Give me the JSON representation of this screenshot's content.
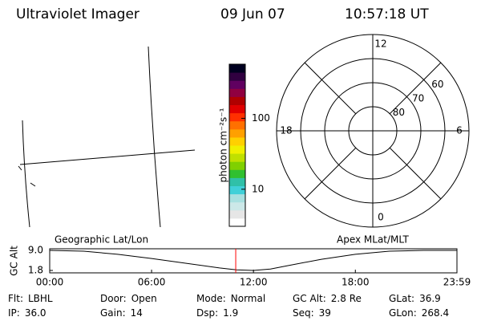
{
  "header": {
    "instrument": "Ultraviolet Imager",
    "date": "09 Jun 07",
    "time": "10:57:18 UT"
  },
  "colorbar": {
    "label": "photon cm⁻²s⁻¹",
    "log": true,
    "lim": [
      3,
      580
    ],
    "ticks": [
      10,
      100
    ],
    "colors": [
      "#ffffff",
      "#e6e6e6",
      "#cce8e8",
      "#a8e0e0",
      "#40d0d8",
      "#30c0a8",
      "#30c030",
      "#80d000",
      "#c0e000",
      "#f0f000",
      "#ffd000",
      "#ffa000",
      "#ff7000",
      "#ff3000",
      "#e00000",
      "#b00000",
      "#900040",
      "#600060",
      "#300040",
      "#000020"
    ]
  },
  "polar": {
    "label": "Apex MLat/MLT",
    "mlat_lim": [
      90,
      50
    ],
    "mlat_ticks": [
      80,
      70,
      60
    ],
    "mlt_ticks": [
      0,
      6,
      12,
      18
    ]
  },
  "map": {
    "label": "Geographic Lat/Lon"
  },
  "altitude": {
    "axis_label": "GC Alt",
    "ylim": [
      1.8,
      9.0
    ],
    "yticks": [
      {
        "value": 9.0,
        "label": "9.0"
      },
      1.8
    ],
    "xlim": [
      0,
      23.983
    ],
    "xticks": [
      {
        "value": 0,
        "label": "00:00"
      },
      {
        "value": 6,
        "label": "06:00"
      },
      {
        "value": 12,
        "label": "12:00"
      },
      {
        "value": 18,
        "label": "18:00"
      },
      {
        "value": 23.983,
        "label": "23:59"
      }
    ],
    "x": [
      0,
      2,
      4,
      6,
      8,
      10,
      11,
      12,
      13,
      14,
      16,
      18,
      20,
      22,
      23.983
    ],
    "values": [
      9.0,
      8.7,
      7.6,
      6.1,
      4.4,
      2.7,
      2.0,
      1.8,
      2.3,
      3.5,
      5.8,
      7.6,
      8.7,
      9.0,
      9.0
    ],
    "marker": 10.955,
    "marker_color": "#ff0000"
  },
  "info": [
    [
      {
        "label": "Flt:",
        "value": "LBHL"
      },
      {
        "label": "Door:",
        "value": "Open"
      },
      {
        "label": "Mode:",
        "value": "Normal"
      },
      {
        "label": "GC Alt:",
        "value": "2.8 Re"
      },
      {
        "label": "GLat:",
        "value": "36.9"
      }
    ],
    [
      {
        "label": "IP:",
        "value": "36.0"
      },
      {
        "label": "Gain:",
        "value": "14"
      },
      {
        "label": "Dsp:",
        "value": "1.9"
      },
      {
        "label": "Seq:",
        "value": "39"
      },
      {
        "label": "GLon:",
        "value": "268.4"
      }
    ]
  ]
}
